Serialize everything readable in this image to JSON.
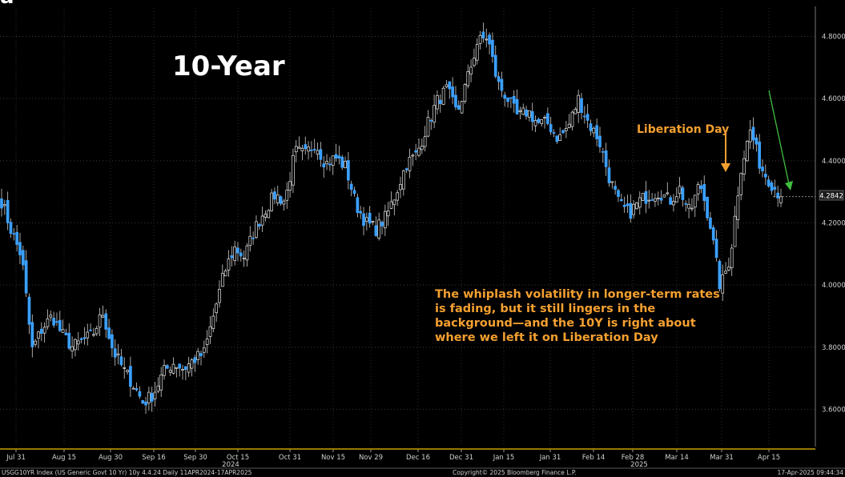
{
  "chart_data": {
    "type": "candlestick",
    "title": "10-Year",
    "corner_glyph": "a",
    "ylim": [
      3.48,
      4.84
    ],
    "yticks": [
      "3.6000",
      "3.8000",
      "4.0000",
      "4.2000",
      "4.4000",
      "4.6000",
      "4.8000"
    ],
    "ytick_values": [
      3.6,
      3.8,
      4.0,
      4.2,
      4.4,
      4.6,
      4.8
    ],
    "last_value": "4.2842",
    "last_value_num": 4.2842,
    "x_dates": [
      "Jul 31",
      "Aug 15",
      "Aug 30",
      "Sep 16",
      "Sep 30",
      "Oct 15",
      "Oct 31",
      "Nov 15",
      "Nov 29",
      "Dec 16",
      "Dec 31",
      "Jan 15",
      "Jan 31",
      "Feb 14",
      "Feb 28",
      "Mar 14",
      "Mar 31",
      "Apr 15"
    ],
    "year_labels": [
      "2024",
      "2025"
    ],
    "grid": true,
    "candle_up_color": "#ffffff",
    "candle_down_color": "#3aa0ff",
    "annotation_color": "#f5a030",
    "close_series": [
      4.27,
      4.17,
      4.09,
      3.79,
      3.86,
      3.9,
      3.84,
      3.8,
      3.82,
      3.84,
      3.91,
      3.79,
      3.73,
      3.68,
      3.62,
      3.65,
      3.72,
      3.75,
      3.73,
      3.76,
      3.78,
      3.91,
      4.04,
      4.12,
      4.09,
      4.18,
      4.24,
      4.29,
      4.27,
      4.43,
      4.42,
      4.46,
      4.39,
      4.41,
      4.38,
      4.26,
      4.2,
      4.18,
      4.22,
      4.3,
      4.39,
      4.42,
      4.51,
      4.59,
      4.63,
      4.55,
      4.66,
      4.78,
      4.8,
      4.65,
      4.6,
      4.54,
      4.56,
      4.52,
      4.52,
      4.47,
      4.51,
      4.6,
      4.52,
      4.47,
      4.35,
      4.26,
      4.23,
      4.27,
      4.29,
      4.3,
      4.27,
      4.31,
      4.23,
      4.33,
      4.2,
      3.99,
      4.09,
      4.37,
      4.5,
      4.38,
      4.33,
      4.2842
    ],
    "annotations": {
      "event_label": "Liberation Day",
      "note": "The whiplash volatility in longer-term rates is fading, but it still lingers in the background—and the 10Y is right about where we left it on Liberation Day"
    }
  },
  "footer": {
    "left": "USGG10YR Index (US Generic Govt 10 Yr) 10y 4.4.24  Daily 11APR2024-17APR2025",
    "center": "Copyright© 2025 Bloomberg Finance L.P.",
    "right": "17-Apr-2025 09:44:34"
  }
}
